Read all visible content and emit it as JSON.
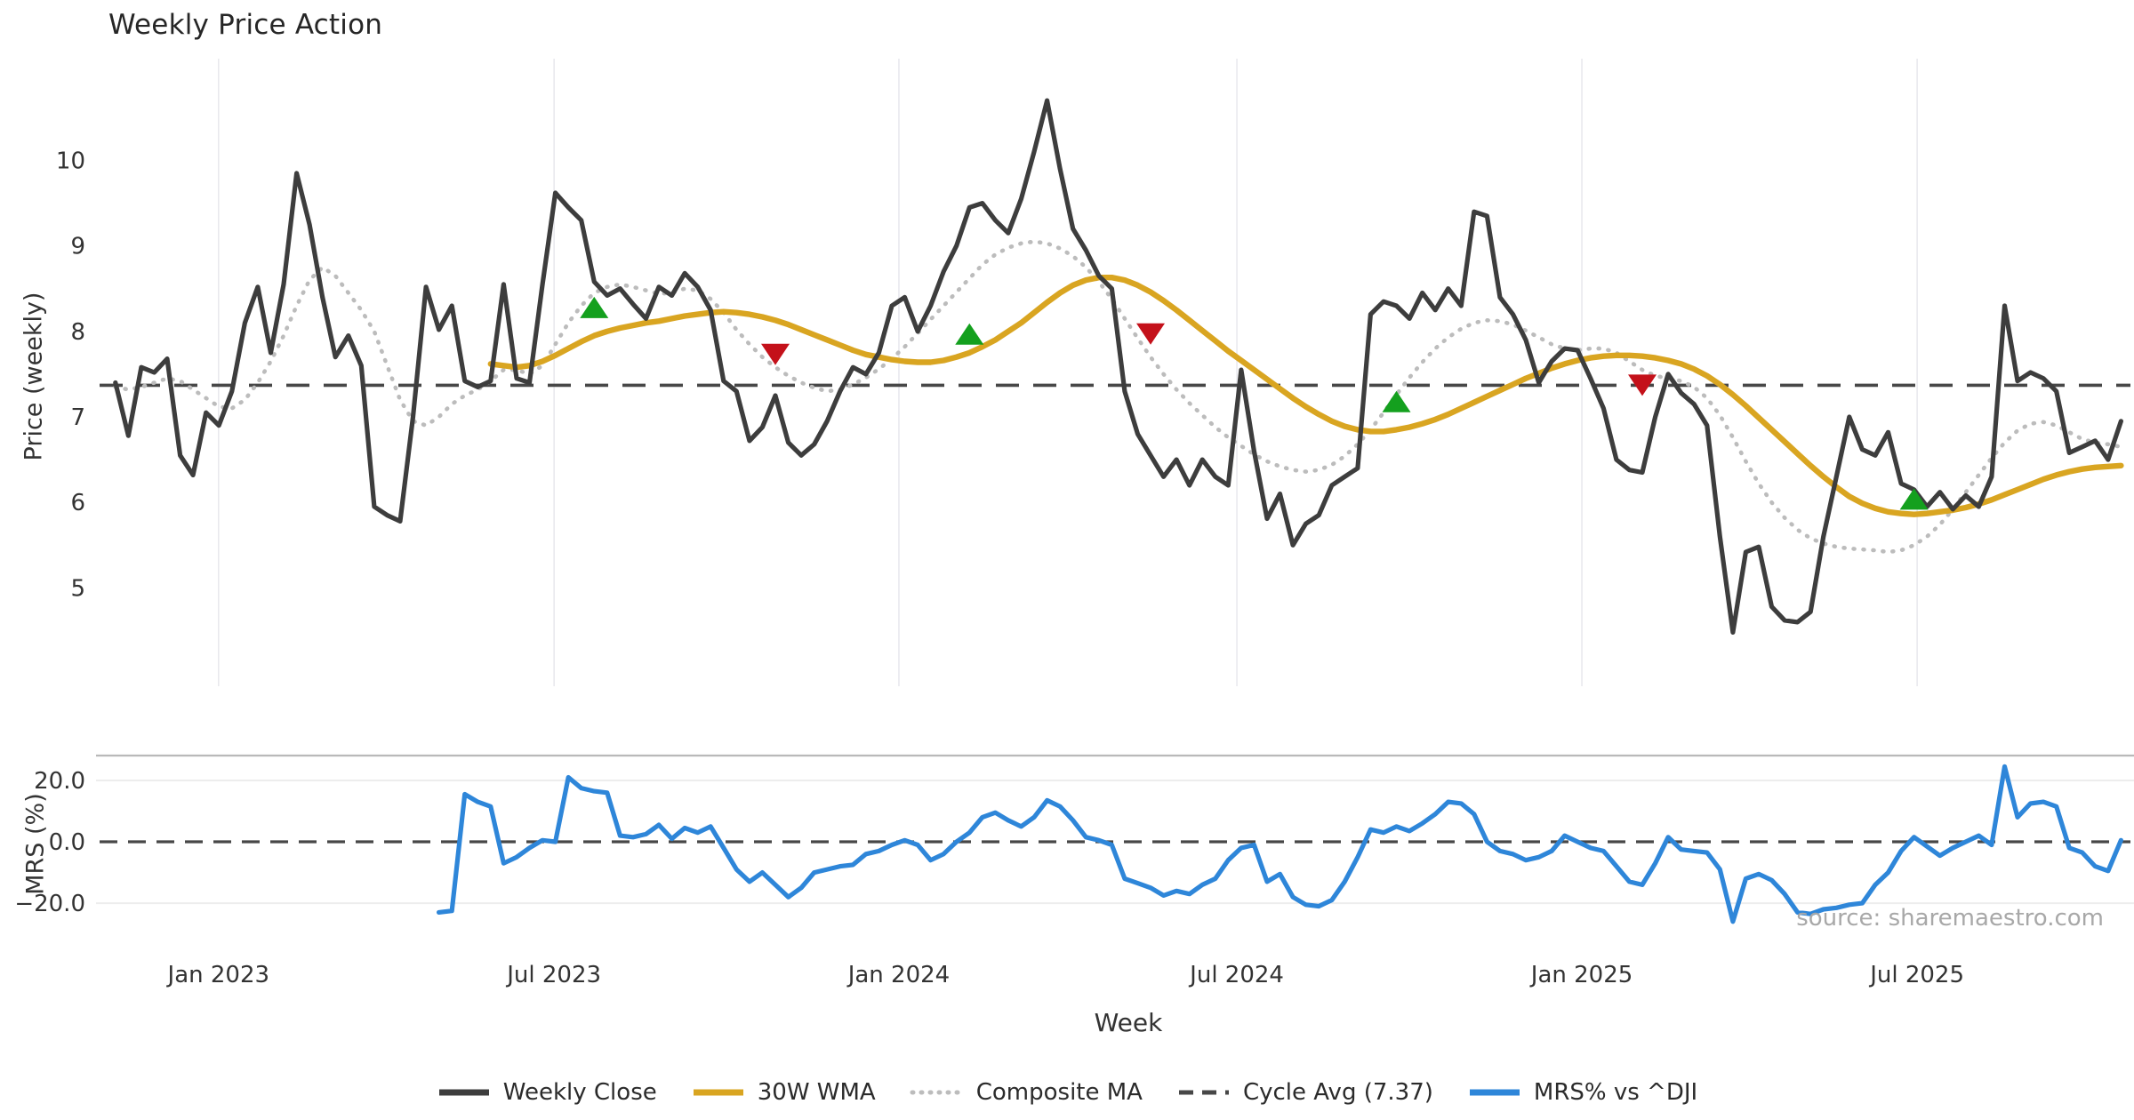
{
  "title": "Weekly Price Action",
  "source_note": "source: sharemaestro.com",
  "axes": {
    "price_label": "Price (weekly)",
    "mrs_label": "MRS (%)",
    "x_label": "Week",
    "price_ticks": [
      10,
      9,
      8,
      7,
      6,
      5
    ],
    "mrs_ticks": [
      {
        "label": "20.0",
        "value": 20
      },
      {
        "label": "0.0",
        "value": 0
      },
      {
        "label": "−20.0",
        "value": -20
      }
    ],
    "x_ticks": [
      {
        "label": "Jan 2023",
        "week": 7.97
      },
      {
        "label": "Jul 2023",
        "week": 33.9
      },
      {
        "label": "Jan 2024",
        "week": 60.55
      },
      {
        "label": "Jul 2024",
        "week": 86.67
      },
      {
        "label": "Jan 2025",
        "week": 113.33
      },
      {
        "label": "Jul 2025",
        "week": 139.24
      }
    ]
  },
  "legend": {
    "items": [
      {
        "key": "weekly-close",
        "label": "Weekly Close",
        "color": "#3d3d3d",
        "style": "solid"
      },
      {
        "key": "30w-wma",
        "label": "30W WMA",
        "color": "#d9a521",
        "style": "solid"
      },
      {
        "key": "composite-ma",
        "label": "Composite MA",
        "color": "#bcbcbc",
        "style": "dotted"
      },
      {
        "key": "cycle-avg",
        "label": "Cycle Avg (7.37)",
        "color": "#474747",
        "style": "dashed"
      },
      {
        "key": "mrs-dji",
        "label": "MRS% vs ^DJI",
        "color": "#2e86d9",
        "style": "solid"
      }
    ]
  },
  "colors": {
    "close": "#3d3d3d",
    "wma": "#d9a521",
    "composite": "#bcbcbc",
    "cycle_dash": "#474747",
    "mrs": "#2e86d9",
    "buy_marker": "#14a01e",
    "sell_marker": "#c4111a",
    "gridline": "#e9e9ee",
    "mrs_gridline": "#ededed",
    "mrs_top_border": "#b9b9b9",
    "tick_text": "#333333"
  },
  "chart_data": {
    "type": "line",
    "title": "Weekly Price Action",
    "xlabel": "Week",
    "x_unit": "week_index",
    "xlim": [
      -1.5,
      156
    ],
    "price_ylim": [
      3.85,
      11.19
    ],
    "mrs_ylim": [
      -33.3,
      28.1
    ],
    "cycle_avg": 7.37,
    "grid": {
      "price_panel_vertical": true,
      "mrs_panel_horizontal": [
        20,
        -20
      ]
    },
    "legend_position": "bottom-center",
    "series": {
      "weekly_close": {
        "start": 0,
        "values": [
          7.4,
          6.78,
          7.58,
          7.52,
          7.68,
          6.55,
          6.32,
          7.05,
          6.9,
          7.3,
          8.1,
          8.52,
          7.75,
          8.55,
          9.85,
          9.25,
          8.4,
          7.7,
          7.95,
          7.6,
          5.95,
          5.85,
          5.78,
          7.0,
          8.52,
          8.02,
          8.3,
          7.42,
          7.35,
          7.42,
          8.55,
          7.45,
          7.4,
          8.55,
          9.62,
          9.45,
          9.3,
          8.58,
          8.42,
          8.5,
          8.32,
          8.15,
          8.52,
          8.42,
          8.68,
          8.52,
          8.25,
          7.42,
          7.3,
          6.72,
          6.88,
          7.25,
          6.7,
          6.55,
          6.68,
          6.95,
          7.3,
          7.58,
          7.5,
          7.75,
          8.3,
          8.4,
          8.0,
          8.3,
          8.7,
          9.0,
          9.45,
          9.5,
          9.3,
          9.15,
          9.55,
          10.1,
          10.7,
          9.9,
          9.2,
          8.95,
          8.65,
          8.5,
          7.3,
          6.8,
          6.55,
          6.3,
          6.5,
          6.2,
          6.5,
          6.3,
          6.2,
          7.55,
          6.6,
          5.81,
          6.1,
          5.5,
          5.75,
          5.85,
          6.2,
          6.3,
          6.4,
          8.2,
          8.35,
          8.3,
          8.15,
          8.45,
          8.25,
          8.5,
          8.3,
          9.4,
          9.35,
          8.4,
          8.2,
          7.9,
          7.4,
          7.65,
          7.8,
          7.78,
          7.45,
          7.1,
          6.5,
          6.38,
          6.35,
          7.0,
          7.5,
          7.28,
          7.15,
          6.9,
          5.6,
          4.48,
          5.42,
          5.48,
          4.78,
          4.62,
          4.6,
          4.72,
          5.6,
          6.3,
          7.0,
          6.62,
          6.55,
          6.82,
          6.22,
          6.15,
          5.95,
          6.12,
          5.92,
          6.08,
          5.95,
          6.3,
          8.3,
          7.42,
          7.52,
          7.45,
          7.3,
          6.58,
          6.65,
          6.72,
          6.5,
          6.95
        ]
      },
      "wma_30w": {
        "start": 29,
        "values": [
          7.62,
          7.6,
          7.58,
          7.6,
          7.65,
          7.72,
          7.8,
          7.88,
          7.95,
          8.0,
          8.04,
          8.07,
          8.1,
          8.12,
          8.15,
          8.18,
          8.2,
          8.22,
          8.23,
          8.22,
          8.2,
          8.17,
          8.13,
          8.08,
          8.02,
          7.96,
          7.9,
          7.84,
          7.78,
          7.73,
          7.7,
          7.67,
          7.65,
          7.64,
          7.64,
          7.66,
          7.7,
          7.75,
          7.82,
          7.9,
          8.0,
          8.1,
          8.22,
          8.34,
          8.45,
          8.54,
          8.6,
          8.63,
          8.63,
          8.6,
          8.54,
          8.46,
          8.36,
          8.25,
          8.13,
          8.01,
          7.89,
          7.77,
          7.66,
          7.55,
          7.44,
          7.33,
          7.22,
          7.12,
          7.03,
          6.95,
          6.89,
          6.85,
          6.83,
          6.83,
          6.85,
          6.88,
          6.92,
          6.97,
          7.03,
          7.1,
          7.17,
          7.24,
          7.31,
          7.38,
          7.45,
          7.51,
          7.57,
          7.62,
          7.66,
          7.69,
          7.71,
          7.72,
          7.72,
          7.71,
          7.69,
          7.66,
          7.62,
          7.56,
          7.48,
          7.38,
          7.26,
          7.13,
          6.99,
          6.85,
          6.71,
          6.57,
          6.43,
          6.3,
          6.18,
          6.07,
          5.99,
          5.93,
          5.89,
          5.87,
          5.86,
          5.87,
          5.89,
          5.91,
          5.94,
          5.98,
          6.03,
          6.09,
          6.15,
          6.21,
          6.27,
          6.32,
          6.36,
          6.39,
          6.41,
          6.42,
          6.43
        ]
      },
      "composite_ma": {
        "start": 0,
        "values": [
          7.35,
          7.32,
          7.35,
          7.4,
          7.45,
          7.42,
          7.32,
          7.22,
          7.12,
          7.1,
          7.2,
          7.4,
          7.65,
          7.95,
          8.3,
          8.6,
          8.75,
          8.65,
          8.45,
          8.25,
          8.0,
          7.6,
          7.2,
          6.95,
          6.9,
          7.0,
          7.15,
          7.25,
          7.32,
          7.42,
          7.55,
          7.55,
          7.5,
          7.6,
          7.85,
          8.1,
          8.3,
          8.45,
          8.52,
          8.55,
          8.52,
          8.48,
          8.44,
          8.45,
          8.5,
          8.48,
          8.38,
          8.22,
          8.02,
          7.85,
          7.7,
          7.58,
          7.48,
          7.4,
          7.34,
          7.3,
          7.32,
          7.38,
          7.46,
          7.56,
          7.68,
          7.82,
          7.98,
          8.14,
          8.3,
          8.46,
          8.62,
          8.78,
          8.9,
          8.98,
          9.03,
          9.05,
          9.03,
          8.97,
          8.88,
          8.75,
          8.58,
          8.38,
          8.15,
          7.92,
          7.7,
          7.5,
          7.32,
          7.16,
          7.02,
          6.88,
          6.76,
          6.66,
          6.56,
          6.48,
          6.42,
          6.38,
          6.36,
          6.38,
          6.44,
          6.54,
          6.68,
          6.85,
          7.05,
          7.26,
          7.46,
          7.64,
          7.8,
          7.93,
          8.03,
          8.1,
          8.13,
          8.12,
          8.08,
          8.01,
          7.93,
          7.85,
          7.8,
          7.78,
          7.8,
          7.8,
          7.75,
          7.65,
          7.55,
          7.48,
          7.45,
          7.42,
          7.35,
          7.22,
          7.02,
          6.76,
          6.48,
          6.22,
          6.0,
          5.82,
          5.68,
          5.58,
          5.52,
          5.48,
          5.46,
          5.45,
          5.44,
          5.42,
          5.44,
          5.5,
          5.6,
          5.74,
          5.92,
          6.12,
          6.32,
          6.52,
          6.7,
          6.84,
          6.92,
          6.94,
          6.9,
          6.82,
          6.74,
          6.7,
          6.68,
          6.65
        ]
      },
      "mrs_pct": {
        "start": 25,
        "values": [
          -23,
          -22.5,
          15.5,
          13,
          11.5,
          -7,
          -5,
          -2,
          0.5,
          0,
          21,
          17.5,
          16.5,
          16,
          2,
          1.5,
          2.5,
          5.5,
          1,
          4.5,
          3,
          5,
          -2,
          -9,
          -13,
          -10,
          -14,
          -18,
          -15,
          -10,
          -9,
          -8,
          -7.5,
          -4,
          -3,
          -1,
          0.5,
          -1,
          -6,
          -4,
          0,
          3,
          8,
          9.5,
          7,
          5,
          8,
          13.5,
          11.5,
          7,
          1.5,
          0.5,
          -1,
          -12,
          -13.5,
          -15,
          -17.5,
          -16,
          -17,
          -14,
          -12,
          -6,
          -2,
          -1,
          -13,
          -10.5,
          -18,
          -20.5,
          -21,
          -19,
          -13,
          -5,
          4,
          3,
          5,
          3.5,
          6,
          9,
          13,
          12.5,
          9,
          0,
          -3,
          -4,
          -6,
          -5,
          -3,
          2,
          0,
          -2,
          -3,
          -8,
          -13,
          -14,
          -7,
          1.5,
          -2.5,
          -3,
          -3.5,
          -9,
          -26,
          -12,
          -10.5,
          -12.5,
          -17,
          -23,
          -23.5,
          -22,
          -21.5,
          -20.5,
          -20,
          -14,
          -10,
          -3,
          1.5,
          -1.5,
          -4.5,
          -2,
          0,
          2,
          -1,
          24.5,
          8,
          12.5,
          13,
          11.5,
          -2,
          -3.5,
          -8,
          -9.5,
          0.5
        ]
      }
    },
    "markers": [
      {
        "week": 37,
        "price": 8.28,
        "direction": "up"
      },
      {
        "week": 51,
        "price": 7.73,
        "direction": "down"
      },
      {
        "week": 66,
        "price": 7.97,
        "direction": "up"
      },
      {
        "week": 80,
        "price": 7.97,
        "direction": "down"
      },
      {
        "week": 99,
        "price": 7.18,
        "direction": "up"
      },
      {
        "week": 118,
        "price": 7.37,
        "direction": "down"
      },
      {
        "week": 139,
        "price": 6.04,
        "direction": "up"
      }
    ]
  }
}
